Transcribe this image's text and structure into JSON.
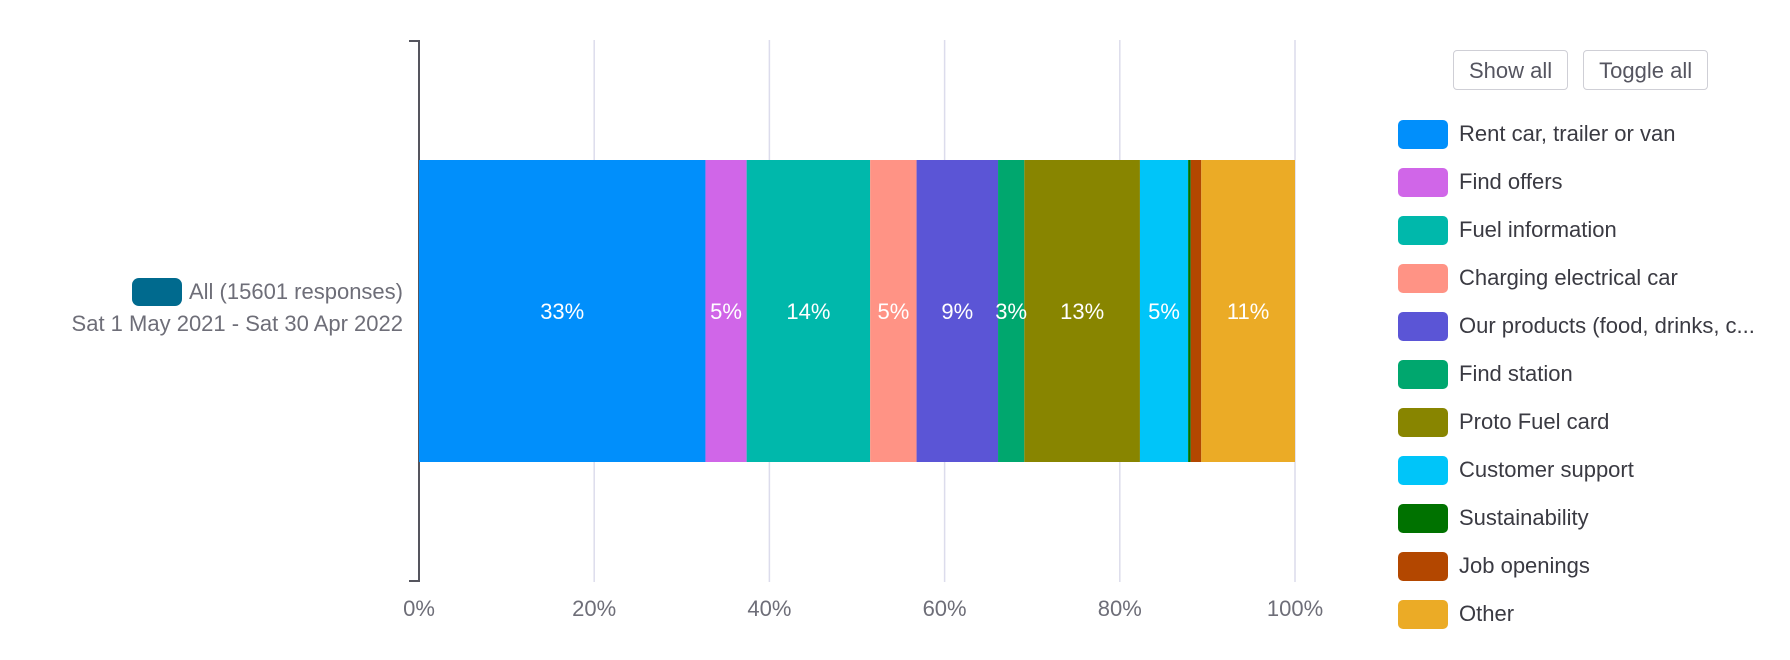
{
  "chart_data": {
    "type": "bar",
    "orientation": "horizontal",
    "stacked": true,
    "xlim": [
      0,
      100
    ],
    "x_ticks": [
      0,
      20,
      40,
      60,
      80,
      100
    ],
    "x_tick_labels": [
      "0%",
      "20%",
      "40%",
      "60%",
      "80%",
      "100%"
    ],
    "grid": true,
    "legend_placement": "right",
    "categories": [
      "All (15601 responses)"
    ],
    "row": {
      "label": "All (15601 responses)",
      "sublabel": "Sat 1 May 2021 - Sat 30 Apr 2022",
      "color": "#006a8e"
    },
    "series": [
      {
        "name": "Rent car, trailer or van",
        "legend_label": "Rent car, trailer or van",
        "value": 32.7,
        "label": "33%",
        "color": "#018ffb"
      },
      {
        "name": "Find offers",
        "legend_label": "Find offers",
        "value": 4.7,
        "label": "5%",
        "color": "#d066e8"
      },
      {
        "name": "Fuel information",
        "legend_label": "Fuel information",
        "value": 14.1,
        "label": "14%",
        "color": "#00b8ab"
      },
      {
        "name": "Charging electrical car",
        "legend_label": "Charging electrical car",
        "value": 5.3,
        "label": "5%",
        "color": "#ff9385"
      },
      {
        "name": "Our products (food, drinks, c...",
        "legend_label": "Our products (food, drinks, c...",
        "value": 9.3,
        "label": "9%",
        "color": "#5b55d6"
      },
      {
        "name": "Find station",
        "legend_label": "Find station",
        "value": 3.0,
        "label": "3%",
        "color": "#00a76e"
      },
      {
        "name": "Proto Fuel card",
        "legend_label": "Proto Fuel card",
        "value": 13.2,
        "label": "13%",
        "color": "#888500"
      },
      {
        "name": "Customer support",
        "legend_label": "Customer support",
        "value": 5.5,
        "label": "5%",
        "color": "#00c5f9"
      },
      {
        "name": "Sustainability",
        "legend_label": "Sustainability",
        "value": 0.3,
        "label": "",
        "color": "#007200"
      },
      {
        "name": "Job openings",
        "legend_label": "Job openings",
        "value": 1.2,
        "label": "",
        "color": "#b34700"
      },
      {
        "name": "Other",
        "legend_label": "Other",
        "value": 10.7,
        "label": "11%",
        "color": "#ebab26"
      }
    ]
  },
  "legend": {
    "show_all_label": "Show all",
    "toggle_all_label": "Toggle all"
  }
}
